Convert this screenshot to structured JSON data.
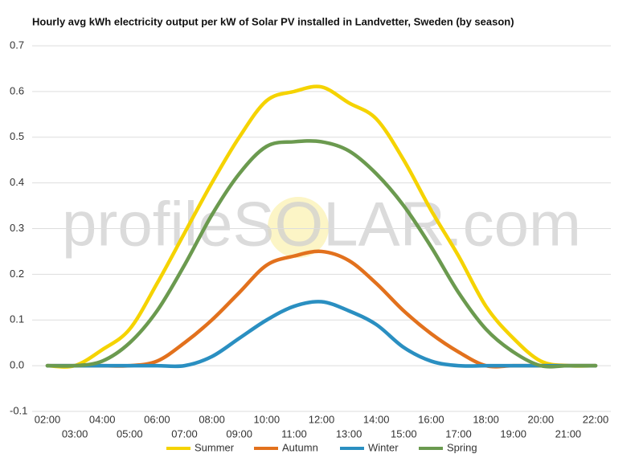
{
  "chart_data": {
    "type": "line",
    "title": "Hourly avg kWh electricity output per kW of Solar PV installed in Landvetter, Sweden (by season)",
    "watermark": "profileSOLAR.com",
    "categories": [
      "02:00",
      "03:00",
      "04:00",
      "05:00",
      "06:00",
      "07:00",
      "08:00",
      "09:00",
      "10:00",
      "11:00",
      "12:00",
      "13:00",
      "14:00",
      "15:00",
      "16:00",
      "17:00",
      "18:00",
      "19:00",
      "20:00",
      "21:00",
      "22:00"
    ],
    "series": [
      {
        "name": "Summer",
        "color": "#f5d300",
        "values": [
          0,
          0,
          0.035,
          0.08,
          0.18,
          0.29,
          0.4,
          0.5,
          0.58,
          0.6,
          0.61,
          0.575,
          0.54,
          0.45,
          0.34,
          0.24,
          0.13,
          0.06,
          0.01,
          0,
          0
        ]
      },
      {
        "name": "Autumn",
        "color": "#e2711d",
        "values": [
          0,
          0,
          0,
          0,
          0.01,
          0.05,
          0.1,
          0.16,
          0.22,
          0.24,
          0.25,
          0.23,
          0.18,
          0.12,
          0.07,
          0.03,
          0,
          0,
          0,
          0,
          0
        ]
      },
      {
        "name": "Winter",
        "color": "#2a8fc1",
        "values": [
          0,
          0,
          0,
          0,
          0,
          0,
          0.02,
          0.06,
          0.1,
          0.13,
          0.14,
          0.12,
          0.09,
          0.04,
          0.01,
          0,
          0,
          0,
          0,
          0,
          0
        ]
      },
      {
        "name": "Spring",
        "color": "#6b9a4f",
        "values": [
          0,
          0,
          0.01,
          0.05,
          0.12,
          0.22,
          0.33,
          0.42,
          0.48,
          0.49,
          0.49,
          0.47,
          0.42,
          0.35,
          0.26,
          0.16,
          0.08,
          0.03,
          0,
          0,
          0
        ]
      }
    ],
    "ylim": [
      -0.1,
      0.7
    ],
    "yticks": [
      -0.1,
      {
        "value": 0,
        "label": "0.0"
      },
      0.1,
      0.2,
      0.3,
      0.4,
      0.5,
      0.6,
      0.7
    ],
    "grid": true
  }
}
